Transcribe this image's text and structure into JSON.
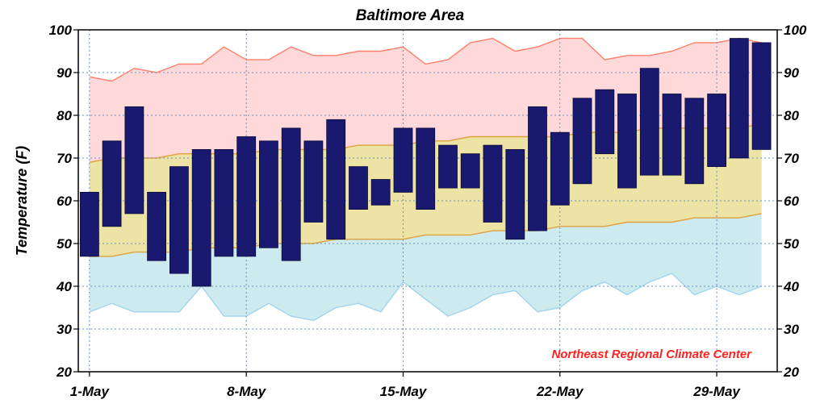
{
  "chart_data": {
    "type": "bar",
    "title": "Baltimore Area",
    "xlabel": "",
    "ylabel": "Temperature (F)",
    "ylim": [
      20,
      100
    ],
    "yticks": [
      20,
      30,
      40,
      50,
      60,
      70,
      80,
      90,
      100
    ],
    "grid": true,
    "x_ticks": [
      {
        "day": 1,
        "label": "1-May"
      },
      {
        "day": 8,
        "label": "8-May"
      },
      {
        "day": 15,
        "label": "15-May"
      },
      {
        "day": 22,
        "label": "22-May"
      },
      {
        "day": 29,
        "label": "29-May"
      }
    ],
    "days": [
      1,
      2,
      3,
      4,
      5,
      6,
      7,
      8,
      9,
      10,
      11,
      12,
      13,
      14,
      15,
      16,
      17,
      18,
      19,
      20,
      21,
      22,
      23,
      24,
      25,
      26,
      27,
      28,
      29,
      30,
      31
    ],
    "series": [
      {
        "type": "floating-bar",
        "color": "#191970",
        "low": [
          47,
          54,
          57,
          46,
          43,
          40,
          47,
          47,
          49,
          46,
          55,
          51,
          58,
          59,
          62,
          58,
          63,
          63,
          55,
          51,
          53,
          59,
          64,
          71,
          63,
          66,
          66,
          64,
          68,
          70,
          72
        ],
        "high": [
          62,
          74,
          82,
          62,
          68,
          72,
          72,
          75,
          74,
          77,
          74,
          79,
          68,
          65,
          77,
          77,
          73,
          71,
          73,
          72,
          82,
          76,
          84,
          86,
          85,
          91,
          85,
          84,
          85,
          98,
          97
        ]
      },
      {
        "type": "area",
        "band": "record-high",
        "fill": "#ffd9d9",
        "line": "#ff7f6a",
        "values": [
          89,
          88,
          91,
          90,
          92,
          92,
          96,
          93,
          93,
          96,
          94,
          94,
          95,
          95,
          96,
          92,
          93,
          97,
          98,
          95,
          96,
          98,
          98,
          93,
          94,
          94,
          95,
          97,
          97,
          98,
          97
        ]
      },
      {
        "type": "area",
        "band": "normal-high",
        "fill": "#ece3a4",
        "line": "#e0a040",
        "values": [
          69,
          70,
          70,
          70,
          71,
          71,
          71,
          71,
          72,
          72,
          72,
          72,
          73,
          73,
          73,
          74,
          74,
          75,
          75,
          75,
          75,
          75,
          76,
          76,
          76,
          77,
          77,
          77,
          77,
          77,
          78
        ]
      },
      {
        "type": "area",
        "band": "normal-low",
        "fill": "#cdebee",
        "line": "#e0a040",
        "values": [
          47,
          47,
          48,
          48,
          48,
          49,
          49,
          49,
          50,
          50,
          50,
          51,
          51,
          51,
          51,
          52,
          52,
          52,
          53,
          53,
          53,
          54,
          54,
          54,
          55,
          55,
          55,
          56,
          56,
          56,
          57
        ]
      },
      {
        "type": "line",
        "band": "record-low",
        "line": "#a0d4ee",
        "values": [
          34,
          36,
          34,
          34,
          34,
          40,
          33,
          33,
          36,
          33,
          32,
          35,
          36,
          34,
          41,
          37,
          33,
          35,
          38,
          39,
          34,
          35,
          39,
          41,
          38,
          41,
          43,
          38,
          40,
          38,
          40
        ]
      }
    ],
    "annotations": [
      {
        "text": "Northeast Regional Climate Center",
        "color": "#ff2020",
        "position": "bottom-right"
      }
    ]
  }
}
